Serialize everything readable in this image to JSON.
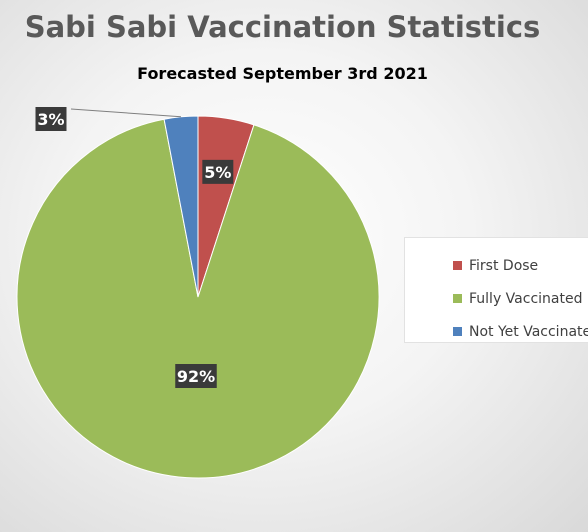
{
  "chart_data": {
    "type": "pie",
    "title": "Sabi Sabi Vaccination Statistics",
    "subtitle": "Forecasted September 3rd 2021",
    "slices": [
      {
        "label": "First Dose",
        "value": 5,
        "data_label": "5%",
        "color": "#c0504d"
      },
      {
        "label": "Fully Vaccinated",
        "value": 92,
        "data_label": "92%",
        "color": "#9bbb59"
      },
      {
        "label": "Not Yet Vaccinated",
        "value": 3,
        "data_label": "3%",
        "color": "#4f81bd"
      }
    ],
    "legend_position": "right"
  }
}
